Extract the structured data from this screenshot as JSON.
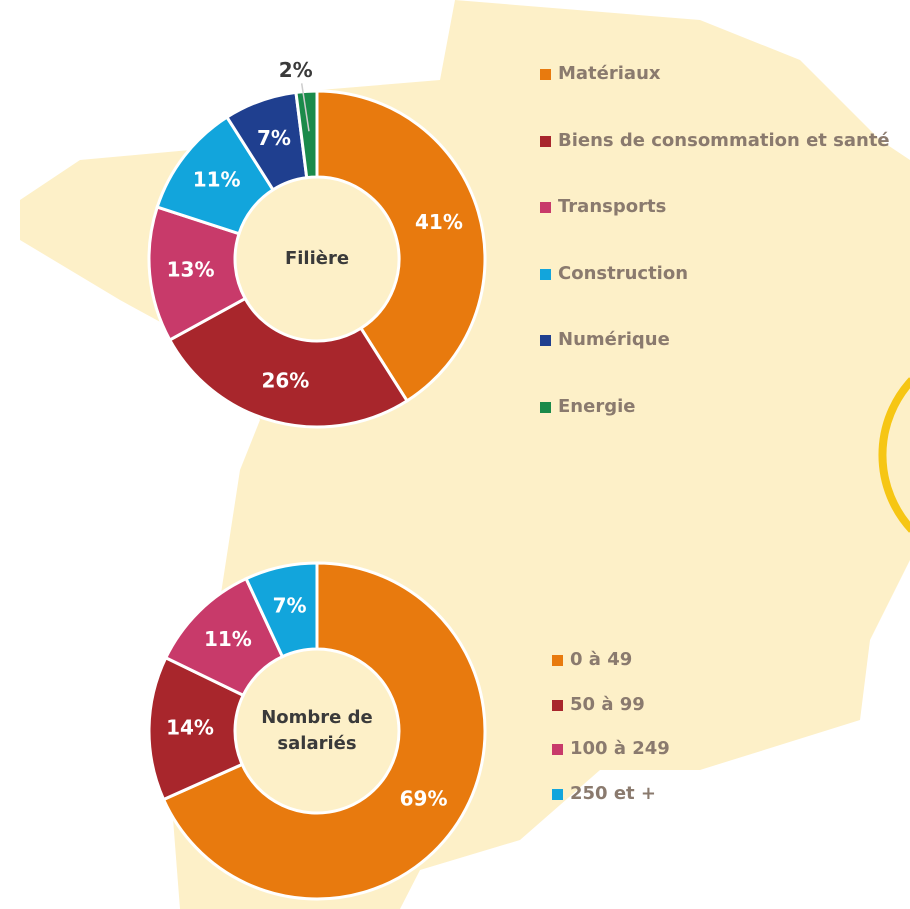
{
  "chart_data": [
    {
      "type": "pie",
      "title": "Filière",
      "categories": [
        "Matériaux",
        "Biens de consommation et santé",
        "Transports",
        "Construction",
        "Numérique",
        "Energie"
      ],
      "values": [
        41,
        26,
        13,
        11,
        7,
        2
      ],
      "value_labels": [
        "41%",
        "26%",
        "13%",
        "11%",
        "7%",
        "2%"
      ],
      "colors": [
        "#e87a0e",
        "#a8262c",
        "#c83a6a",
        "#12a5dc",
        "#1f3f8f",
        "#1a8a4a"
      ]
    },
    {
      "type": "pie",
      "title": "Nombre de salariés",
      "categories": [
        "0 à 49",
        "50 à 99",
        "100 à 249",
        "250 et +"
      ],
      "values": [
        69,
        14,
        11,
        7
      ],
      "value_labels": [
        "69%",
        "14%",
        "11%",
        "7%"
      ],
      "colors": [
        "#e87a0e",
        "#a8262c",
        "#c83a6a",
        "#12a5dc"
      ]
    }
  ]
}
